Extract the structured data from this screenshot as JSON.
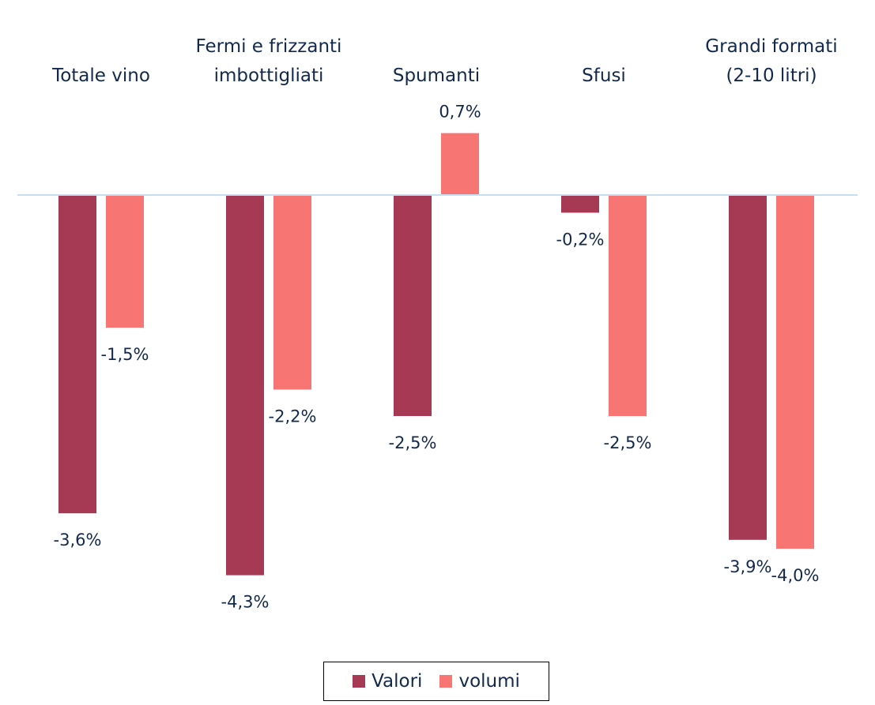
{
  "chart_data": {
    "type": "bar",
    "categories": [
      "Totale vino",
      "Fermi e frizzanti imbottigliati",
      "Spumanti",
      "Sfusi",
      "Grandi formati (2-10 litri)"
    ],
    "series": [
      {
        "name": "Valori",
        "color": "#a63a55",
        "values": [
          -3.6,
          -4.3,
          -2.5,
          -0.2,
          -3.9
        ],
        "value_labels": [
          "-3,6%",
          "-4,3%",
          "-2,5%",
          "-0,2%",
          "-3,9%"
        ]
      },
      {
        "name": "volumi",
        "color": "#f77674",
        "values": [
          -1.5,
          -2.2,
          0.7,
          -2.5,
          -4.0
        ],
        "value_labels": [
          "-1,5%",
          "-2,2%",
          "0,7%",
          "-2,5%",
          "-4,0%"
        ]
      }
    ],
    "ylim": [
      -5,
      1.5
    ],
    "legend": "bottom",
    "zero_line_color": "#c5dff0"
  }
}
